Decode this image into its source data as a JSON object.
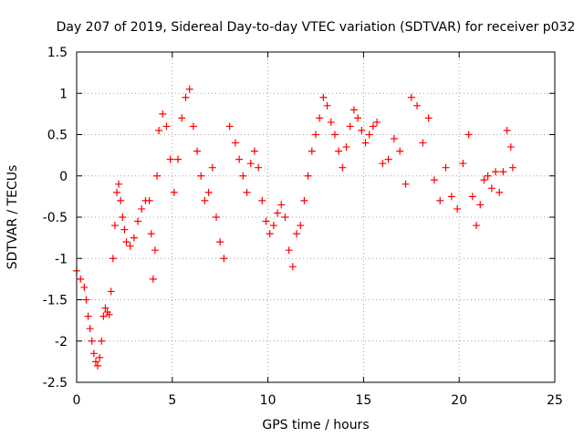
{
  "chart_data": {
    "type": "scatter",
    "title": "Day 207 of 2019, Sidereal Day-to-day VTEC variation (SDTVAR) for receiver p032",
    "xlabel": "GPS time / hours",
    "ylabel": "SDTVAR / TECUs",
    "xlim": [
      0,
      25
    ],
    "ylim": [
      -2.5,
      1.5
    ],
    "xticks": [
      0,
      5,
      10,
      15,
      20,
      25
    ],
    "xtick_labels": [
      "0",
      "5",
      "10",
      "15",
      "20",
      "25"
    ],
    "yticks": [
      -2.5,
      -2,
      -1.5,
      -1,
      -0.5,
      0,
      0.5,
      1,
      1.5
    ],
    "ytick_labels": [
      "-2.5",
      "-2",
      "-1.5",
      "-1",
      "-0.5",
      "0",
      "0.5",
      "1",
      "1.5"
    ],
    "grid": true,
    "marker": "plus",
    "color": "#ff0000",
    "series": [
      {
        "name": "SDTVAR",
        "x": [
          0.0,
          0.2,
          0.4,
          0.5,
          0.6,
          0.7,
          0.8,
          0.9,
          1.0,
          1.1,
          1.2,
          1.3,
          1.4,
          1.5,
          1.6,
          1.7,
          1.8,
          1.9,
          2.0,
          2.1,
          2.2,
          2.3,
          2.4,
          2.5,
          2.6,
          2.8,
          3.0,
          3.2,
          3.4,
          3.6,
          3.8,
          3.9,
          4.0,
          4.1,
          4.2,
          4.3,
          4.5,
          4.7,
          4.9,
          5.1,
          5.3,
          5.5,
          5.7,
          5.9,
          6.1,
          6.3,
          6.5,
          6.7,
          6.9,
          7.1,
          7.3,
          7.5,
          7.7,
          8.0,
          8.3,
          8.5,
          8.7,
          8.9,
          9.1,
          9.3,
          9.5,
          9.7,
          9.9,
          10.1,
          10.3,
          10.5,
          10.7,
          10.9,
          11.1,
          11.3,
          11.5,
          11.7,
          11.9,
          12.1,
          12.3,
          12.5,
          12.7,
          12.9,
          13.1,
          13.3,
          13.5,
          13.7,
          13.9,
          14.1,
          14.3,
          14.5,
          14.7,
          14.9,
          15.1,
          15.3,
          15.5,
          15.7,
          16.0,
          16.3,
          16.6,
          16.9,
          17.2,
          17.5,
          17.8,
          18.1,
          18.4,
          18.7,
          19.0,
          19.3,
          19.6,
          19.9,
          20.2,
          20.5,
          20.7,
          20.9,
          21.1,
          21.3,
          21.5,
          21.7,
          21.9,
          22.1,
          22.3,
          22.5,
          22.7,
          22.8
        ],
        "y": [
          -1.15,
          -1.25,
          -1.35,
          -1.5,
          -1.7,
          -1.85,
          -2.0,
          -2.15,
          -2.25,
          -2.3,
          -2.2,
          -2.0,
          -1.7,
          -1.6,
          -1.65,
          -1.68,
          -1.4,
          -1.0,
          -0.6,
          -0.2,
          -0.1,
          -0.3,
          -0.5,
          -0.65,
          -0.8,
          -0.85,
          -0.75,
          -0.55,
          -0.4,
          -0.3,
          -0.3,
          -0.7,
          -1.25,
          -0.9,
          0.0,
          0.55,
          0.75,
          0.6,
          0.2,
          -0.2,
          0.2,
          0.7,
          0.95,
          1.05,
          0.6,
          0.3,
          0.0,
          -0.3,
          -0.2,
          0.1,
          -0.5,
          -0.8,
          -1.0,
          0.6,
          0.4,
          0.2,
          0.0,
          -0.2,
          0.15,
          0.3,
          0.1,
          -0.3,
          -0.55,
          -0.7,
          -0.6,
          -0.45,
          -0.35,
          -0.5,
          -0.9,
          -1.1,
          -0.7,
          -0.6,
          -0.3,
          0.0,
          0.3,
          0.5,
          0.7,
          0.95,
          0.85,
          0.65,
          0.5,
          0.3,
          0.1,
          0.35,
          0.6,
          0.8,
          0.7,
          0.55,
          0.4,
          0.5,
          0.6,
          0.65,
          0.15,
          0.2,
          0.45,
          0.3,
          -0.1,
          0.95,
          0.85,
          0.4,
          0.7,
          -0.05,
          -0.3,
          0.1,
          -0.25,
          -0.4,
          0.15,
          0.5,
          -0.25,
          -0.6,
          -0.35,
          -0.05,
          0.0,
          -0.15,
          0.05,
          -0.2,
          0.05,
          0.55,
          0.35,
          0.1
        ]
      }
    ]
  }
}
